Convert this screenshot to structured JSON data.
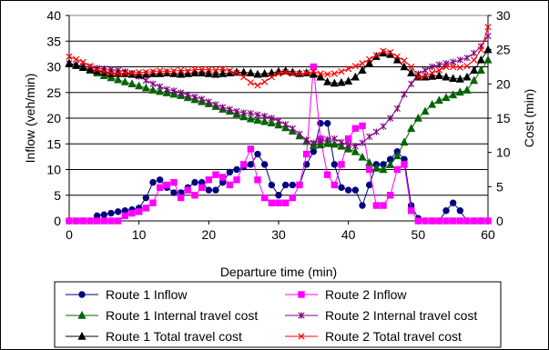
{
  "chart_data": {
    "type": "line",
    "title": "",
    "xlabel": "Departure time (min)",
    "ylabel": "Inflow (veh/min)",
    "y2label": "Cost (min)",
    "xlim": [
      0,
      60
    ],
    "ylim": [
      0,
      40
    ],
    "y2lim": [
      0,
      30
    ],
    "xticks": [
      "0",
      "10",
      "20",
      "30",
      "40",
      "50",
      "60"
    ],
    "yticks": [
      "0",
      "5",
      "10",
      "15",
      "20",
      "25",
      "30",
      "35",
      "40"
    ],
    "y2ticks": [
      "0",
      "5",
      "10",
      "15",
      "20",
      "25",
      "30"
    ],
    "grid": "horizontal",
    "legend_position": "bottom",
    "series": [
      {
        "name": "Route 1 Inflow",
        "axis": "left",
        "color": "#000080",
        "marker": "circle",
        "x": [
          0,
          1,
          2,
          3,
          4,
          5,
          6,
          7,
          8,
          9,
          10,
          11,
          12,
          13,
          14,
          15,
          16,
          17,
          18,
          19,
          20,
          21,
          22,
          23,
          24,
          25,
          26,
          27,
          28,
          29,
          30,
          31,
          32,
          33,
          34,
          35,
          36,
          37,
          38,
          39,
          40,
          41,
          42,
          43,
          44,
          45,
          46,
          47,
          48,
          49,
          50,
          51,
          52,
          53,
          54,
          55,
          56,
          57,
          58,
          59,
          60
        ],
        "values": [
          0,
          0,
          0,
          0,
          1,
          1.2,
          1.5,
          1.8,
          2,
          2.2,
          2.5,
          4.5,
          7.5,
          8,
          6.5,
          5.5,
          5.5,
          6.5,
          7.5,
          7.5,
          6,
          6,
          7.5,
          9.5,
          10,
          10.5,
          11,
          13,
          11,
          7,
          5,
          7,
          7,
          7,
          11,
          13.5,
          19,
          19,
          11,
          6.5,
          6,
          6,
          3,
          7,
          11,
          11,
          12,
          13.5,
          12,
          3,
          0.5,
          0,
          0,
          0,
          2,
          3.5,
          2,
          0,
          0,
          0,
          0
        ]
      },
      {
        "name": "Route 2 Inflow",
        "axis": "left",
        "color": "#ff00ff",
        "marker": "square",
        "x": [
          0,
          1,
          2,
          3,
          4,
          5,
          6,
          7,
          8,
          9,
          10,
          11,
          12,
          13,
          14,
          15,
          16,
          17,
          18,
          19,
          20,
          21,
          22,
          23,
          24,
          25,
          26,
          27,
          28,
          29,
          30,
          31,
          32,
          33,
          34,
          35,
          36,
          37,
          38,
          39,
          40,
          41,
          42,
          43,
          44,
          45,
          46,
          47,
          48,
          49,
          50,
          51,
          52,
          53,
          54,
          55,
          56,
          57,
          58,
          59,
          60
        ],
        "values": [
          0,
          0,
          0,
          0,
          0,
          0,
          0,
          0,
          1,
          1.5,
          1.8,
          2.5,
          3.5,
          6.5,
          7,
          7.5,
          4.5,
          6,
          5,
          6.5,
          8,
          9,
          8.5,
          7,
          8,
          11,
          14,
          8,
          4.5,
          3.5,
          3.5,
          3.5,
          4.5,
          7,
          13,
          30,
          16,
          9,
          7,
          11,
          16,
          18,
          18.5,
          10,
          3,
          3,
          5,
          10,
          11,
          2,
          0,
          0,
          0,
          0,
          0,
          0,
          0,
          0,
          0,
          0,
          0
        ]
      },
      {
        "name": "Route 1 Internal travel cost",
        "axis": "right",
        "color": "#006400",
        "marker": "triangle",
        "x": [
          0,
          1,
          2,
          3,
          4,
          5,
          6,
          7,
          8,
          9,
          10,
          11,
          12,
          13,
          14,
          15,
          16,
          17,
          18,
          19,
          20,
          21,
          22,
          23,
          24,
          25,
          26,
          27,
          28,
          29,
          30,
          31,
          32,
          33,
          34,
          35,
          36,
          37,
          38,
          39,
          40,
          41,
          42,
          43,
          44,
          45,
          46,
          47,
          48,
          49,
          50,
          51,
          52,
          53,
          54,
          55,
          56,
          57,
          58,
          59,
          60
        ],
        "values": [
          23,
          22.7,
          22.4,
          22,
          21.6,
          21.2,
          20.9,
          20.6,
          20.3,
          20,
          19.7,
          19.4,
          19.1,
          18.9,
          18.7,
          18.5,
          18.3,
          18,
          17.7,
          17.4,
          17.1,
          16.7,
          16.3,
          16,
          15.6,
          15.2,
          14.9,
          14.7,
          14.5,
          14.3,
          14,
          13.6,
          13.1,
          12.4,
          11.6,
          11,
          11.1,
          11.3,
          11.2,
          10.9,
          10.5,
          10.1,
          9.3,
          8.5,
          7.7,
          7.5,
          8.2,
          9.5,
          11.5,
          13.5,
          15,
          16,
          17,
          17.6,
          18,
          18.4,
          18.8,
          19.1,
          20.5,
          22,
          23.5
        ]
      },
      {
        "name": "Route 2 Internal travel cost",
        "axis": "right",
        "color": "#800080",
        "marker": "star",
        "x": [
          0,
          1,
          2,
          3,
          4,
          5,
          6,
          7,
          8,
          9,
          10,
          11,
          12,
          13,
          14,
          15,
          16,
          17,
          18,
          19,
          20,
          21,
          22,
          23,
          24,
          25,
          26,
          27,
          28,
          29,
          30,
          31,
          32,
          33,
          34,
          35,
          36,
          37,
          38,
          39,
          40,
          41,
          42,
          43,
          44,
          45,
          46,
          47,
          48,
          49,
          50,
          51,
          52,
          53,
          54,
          55,
          56,
          57,
          58,
          59,
          60
        ],
        "values": [
          23,
          22.8,
          22.6,
          22.5,
          22.3,
          22.2,
          22.1,
          22,
          21.8,
          21.5,
          21.1,
          20.5,
          20,
          19.6,
          19.2,
          19,
          18.7,
          18.4,
          18.1,
          17.8,
          17.4,
          17,
          16.6,
          16.3,
          16,
          15.8,
          15.7,
          15.5,
          15.3,
          15,
          14.6,
          14.1,
          13.5,
          12.7,
          11.8,
          11.4,
          11.7,
          11.9,
          12,
          11.5,
          11.1,
          10.9,
          11.4,
          12.3,
          13,
          13.8,
          15,
          16.4,
          18.5,
          20,
          21.5,
          22,
          22.5,
          22.8,
          23,
          23.2,
          23.5,
          23.8,
          24.5,
          25.5,
          27
        ]
      },
      {
        "name": "Route 1 Total travel cost",
        "axis": "right",
        "color": "#000000",
        "marker": "triangle",
        "x": [
          0,
          1,
          2,
          3,
          4,
          5,
          6,
          7,
          8,
          9,
          10,
          11,
          12,
          13,
          14,
          15,
          16,
          17,
          18,
          19,
          20,
          21,
          22,
          23,
          24,
          25,
          26,
          27,
          28,
          29,
          30,
          31,
          32,
          33,
          34,
          35,
          36,
          37,
          38,
          39,
          40,
          41,
          42,
          43,
          44,
          45,
          46,
          47,
          48,
          49,
          50,
          51,
          52,
          53,
          54,
          55,
          56,
          57,
          58,
          59,
          60
        ],
        "values": [
          23,
          22.7,
          22.4,
          22.1,
          21.9,
          21.7,
          21.5,
          21.5,
          21.5,
          21.4,
          21.3,
          21.4,
          21.5,
          21.5,
          21.6,
          21.5,
          21.4,
          21.5,
          21.6,
          21.6,
          21.5,
          21.4,
          21.5,
          21.6,
          21.7,
          21.7,
          21.6,
          21.4,
          21.5,
          21.6,
          21.8,
          21.9,
          21.7,
          21.5,
          21.6,
          21.4,
          21,
          20.3,
          20.1,
          20.2,
          20.4,
          21,
          22,
          23,
          24,
          24.5,
          24.3,
          23.5,
          22.5,
          21.6,
          21,
          21,
          21.1,
          21.2,
          21,
          20.8,
          20.7,
          21,
          22,
          23.5,
          25
        ]
      },
      {
        "name": "Route 2 Total travel cost",
        "axis": "right",
        "color": "#ff0000",
        "marker": "x",
        "x": [
          0,
          1,
          2,
          3,
          4,
          5,
          6,
          7,
          8,
          9,
          10,
          11,
          12,
          13,
          14,
          15,
          16,
          17,
          18,
          19,
          20,
          21,
          22,
          23,
          24,
          25,
          26,
          27,
          28,
          29,
          30,
          31,
          32,
          33,
          34,
          35,
          36,
          37,
          38,
          39,
          40,
          41,
          42,
          43,
          44,
          45,
          46,
          47,
          48,
          49,
          50,
          51,
          52,
          53,
          54,
          55,
          56,
          57,
          58,
          59,
          60
        ],
        "values": [
          24,
          23.6,
          23.2,
          22.6,
          22.1,
          21.8,
          21.6,
          21.5,
          21.6,
          21.6,
          21.7,
          21.7,
          21.8,
          21.9,
          21.8,
          21.9,
          22,
          21.9,
          22.1,
          22.1,
          22.1,
          22,
          22.2,
          21.9,
          21.6,
          21,
          20.2,
          19.8,
          20.3,
          21,
          21.5,
          21.7,
          21.5,
          21.5,
          21.6,
          21.8,
          21.5,
          21.4,
          21.5,
          21.8,
          22.2,
          22.6,
          23,
          23.6,
          24.2,
          24.8,
          24.6,
          24,
          23.4,
          22.5,
          21,
          21.2,
          21.6,
          22,
          22.5,
          22.5,
          22.4,
          22.6,
          23.5,
          25,
          28.3
        ]
      }
    ]
  }
}
